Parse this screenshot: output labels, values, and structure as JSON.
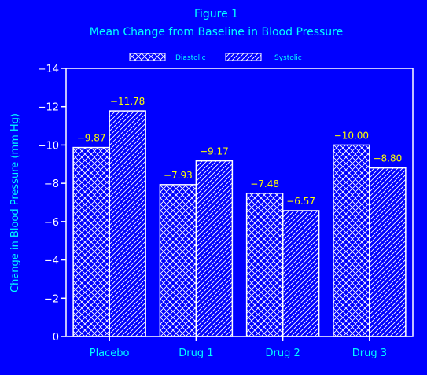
{
  "colors": {
    "background": "#0000ff",
    "title": "#00ffff",
    "axes": "#ffffff",
    "bars": "#ffffff",
    "value_labels": "#ffff00"
  },
  "chart_data": {
    "type": "bar",
    "title": "Figure 1",
    "subtitle": "Mean Change from Baseline in Blood Pressure",
    "xlabel": "",
    "ylabel": "Change in Blood Pressure (mm Hg)",
    "categories": [
      "Placebo",
      "Drug 1",
      "Drug 2",
      "Drug 3"
    ],
    "series": [
      {
        "name": "Diastolic",
        "pattern": "crosshatch",
        "values": [
          -9.87,
          -7.93,
          -7.48,
          -10.0
        ],
        "labels": [
          "−9.87",
          "−7.93",
          "−7.48",
          "−10.00"
        ]
      },
      {
        "name": "Systolic",
        "pattern": "diagonal",
        "values": [
          -11.78,
          -9.17,
          -6.57,
          -8.8
        ],
        "labels": [
          "−11.78",
          "−9.17",
          "−6.57",
          "−8.80"
        ]
      }
    ],
    "yticks": [
      0,
      -2,
      -4,
      -6,
      -8,
      -10,
      -12,
      -14
    ],
    "ytick_labels": [
      "0",
      "−2",
      "−4",
      "−6",
      "−8",
      "−10",
      "−12",
      "−14"
    ],
    "ylim": [
      0,
      -14
    ],
    "grid": false,
    "legend_position": "top"
  }
}
